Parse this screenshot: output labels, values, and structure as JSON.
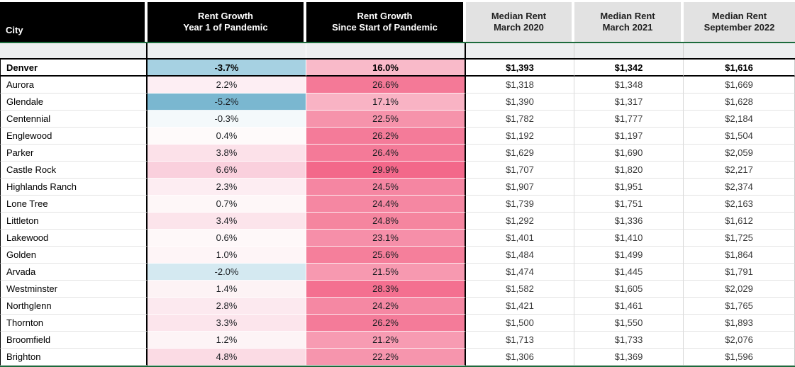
{
  "accent": {
    "header_black": "#000000",
    "header_gray": "#e2e2e2",
    "freeze_green": "#1c6b3c",
    "spacer_gray": "#edeff0",
    "negative_blue_max": "#7ab7d0",
    "positive_pink_max": "#f3688a"
  },
  "table": {
    "headers": {
      "city": "City",
      "yr1": "Rent Growth\nYear 1 of Pandemic",
      "since": "Rent Growth\nSince Start of Pandemic",
      "m2020": "Median Rent\nMarch 2020",
      "m2021": "Median Rent\nMarch 2021",
      "m2022": "Median Rent\nSeptember 2022"
    },
    "rows": [
      {
        "city": "Denver",
        "bold": true,
        "yr1": "-3.7%",
        "yr1_bg": "#a6d1e2",
        "since": "16.0%",
        "since_bg": "#f9bac9",
        "rent_mar2020": "$1,393",
        "rent_mar2021": "$1,342",
        "rent_sep2022": "$1,616"
      },
      {
        "city": "Aurora",
        "bold": false,
        "yr1": "2.2%",
        "yr1_bg": "#fdeef3",
        "since": "26.6%",
        "since_bg": "#f47997",
        "rent_mar2020": "$1,318",
        "rent_mar2021": "$1,348",
        "rent_sep2022": "$1,669"
      },
      {
        "city": "Glendale",
        "bold": false,
        "yr1": "-5.2%",
        "yr1_bg": "#7ab7d0",
        "since": "17.1%",
        "since_bg": "#f9b3c4",
        "rent_mar2020": "$1,390",
        "rent_mar2021": "$1,317",
        "rent_sep2022": "$1,628"
      },
      {
        "city": "Centennial",
        "bold": false,
        "yr1": "-0.3%",
        "yr1_bg": "#f4f9fb",
        "since": "22.5%",
        "since_bg": "#f693ab",
        "rent_mar2020": "$1,782",
        "rent_mar2021": "$1,777",
        "rent_sep2022": "$2,184"
      },
      {
        "city": "Englewood",
        "bold": false,
        "yr1": "0.4%",
        "yr1_bg": "#fefafa",
        "since": "26.2%",
        "since_bg": "#f47b99",
        "rent_mar2020": "$1,192",
        "rent_mar2021": "$1,197",
        "rent_sep2022": "$1,504"
      },
      {
        "city": "Parker",
        "bold": false,
        "yr1": "3.8%",
        "yr1_bg": "#fce1e9",
        "since": "26.4%",
        "since_bg": "#f47a98",
        "rent_mar2020": "$1,629",
        "rent_mar2021": "$1,690",
        "rent_sep2022": "$2,059"
      },
      {
        "city": "Castle Rock",
        "bold": false,
        "yr1": "6.6%",
        "yr1_bg": "#fad0dd",
        "since": "29.9%",
        "since_bg": "#f3688a",
        "rent_mar2020": "$1,707",
        "rent_mar2021": "$1,820",
        "rent_sep2022": "$2,217"
      },
      {
        "city": "Highlands Ranch",
        "bold": false,
        "yr1": "2.3%",
        "yr1_bg": "#fdedf2",
        "since": "24.5%",
        "since_bg": "#f586a2",
        "rent_mar2020": "$1,907",
        "rent_mar2021": "$1,951",
        "rent_sep2022": "$2,374"
      },
      {
        "city": "Lone Tree",
        "bold": false,
        "yr1": "0.7%",
        "yr1_bg": "#fef7f8",
        "since": "24.4%",
        "since_bg": "#f587a2",
        "rent_mar2020": "$1,739",
        "rent_mar2021": "$1,751",
        "rent_sep2022": "$2,163"
      },
      {
        "city": "Littleton",
        "bold": false,
        "yr1": "3.4%",
        "yr1_bg": "#fce4eb",
        "since": "24.8%",
        "since_bg": "#f5859f",
        "rent_mar2020": "$1,292",
        "rent_mar2021": "$1,336",
        "rent_sep2022": "$1,612"
      },
      {
        "city": "Lakewood",
        "bold": false,
        "yr1": "0.6%",
        "yr1_bg": "#fef8f9",
        "since": "23.1%",
        "since_bg": "#f68fa9",
        "rent_mar2020": "$1,401",
        "rent_mar2021": "$1,410",
        "rent_sep2022": "$1,725"
      },
      {
        "city": "Golden",
        "bold": false,
        "yr1": "1.0%",
        "yr1_bg": "#fef5f7",
        "since": "25.6%",
        "since_bg": "#f57f9b",
        "rent_mar2020": "$1,484",
        "rent_mar2021": "$1,499",
        "rent_sep2022": "$1,864"
      },
      {
        "city": "Arvada",
        "bold": false,
        "yr1": "-2.0%",
        "yr1_bg": "#d4e9f1",
        "since": "21.5%",
        "since_bg": "#f799b0",
        "rent_mar2020": "$1,474",
        "rent_mar2021": "$1,445",
        "rent_sep2022": "$1,791"
      },
      {
        "city": "Westminster",
        "bold": false,
        "yr1": "1.4%",
        "yr1_bg": "#fdf3f5",
        "since": "28.3%",
        "since_bg": "#f47090",
        "rent_mar2020": "$1,582",
        "rent_mar2021": "$1,605",
        "rent_sep2022": "$2,029"
      },
      {
        "city": "Northglenn",
        "bold": false,
        "yr1": "2.8%",
        "yr1_bg": "#fce9ef",
        "since": "24.2%",
        "since_bg": "#f588a3",
        "rent_mar2020": "$1,421",
        "rent_mar2021": "$1,461",
        "rent_sep2022": "$1,765"
      },
      {
        "city": "Thornton",
        "bold": false,
        "yr1": "3.3%",
        "yr1_bg": "#fce5ec",
        "since": "26.2%",
        "since_bg": "#f47b99",
        "rent_mar2020": "$1,500",
        "rent_mar2021": "$1,550",
        "rent_sep2022": "$1,893"
      },
      {
        "city": "Broomfield",
        "bold": false,
        "yr1": "1.2%",
        "yr1_bg": "#fdf4f6",
        "since": "21.2%",
        "since_bg": "#f79bb2",
        "rent_mar2020": "$1,713",
        "rent_mar2021": "$1,733",
        "rent_sep2022": "$2,076"
      },
      {
        "city": "Brighton",
        "bold": false,
        "yr1": "4.8%",
        "yr1_bg": "#fbdbe4",
        "since": "22.2%",
        "since_bg": "#f695ad",
        "rent_mar2020": "$1,306",
        "rent_mar2021": "$1,369",
        "rent_sep2022": "$1,596"
      }
    ]
  },
  "chart_data": {
    "type": "table",
    "title": "Denver metro rent growth and median rents",
    "columns": [
      "City",
      "Rent Growth Year 1 of Pandemic (%)",
      "Rent Growth Since Start of Pandemic (%)",
      "Median Rent March 2020 ($)",
      "Median Rent March 2021 ($)",
      "Median Rent September 2022 ($)"
    ],
    "rows": [
      [
        "Denver",
        -3.7,
        16.0,
        1393,
        1342,
        1616
      ],
      [
        "Aurora",
        2.2,
        26.6,
        1318,
        1348,
        1669
      ],
      [
        "Glendale",
        -5.2,
        17.1,
        1390,
        1317,
        1628
      ],
      [
        "Centennial",
        -0.3,
        22.5,
        1782,
        1777,
        2184
      ],
      [
        "Englewood",
        0.4,
        26.2,
        1192,
        1197,
        1504
      ],
      [
        "Parker",
        3.8,
        26.4,
        1629,
        1690,
        2059
      ],
      [
        "Castle Rock",
        6.6,
        29.9,
        1707,
        1820,
        2217
      ],
      [
        "Highlands Ranch",
        2.3,
        24.5,
        1907,
        1951,
        2374
      ],
      [
        "Lone Tree",
        0.7,
        24.4,
        1739,
        1751,
        2163
      ],
      [
        "Littleton",
        3.4,
        24.8,
        1292,
        1336,
        1612
      ],
      [
        "Lakewood",
        0.6,
        23.1,
        1401,
        1410,
        1725
      ],
      [
        "Golden",
        1.0,
        25.6,
        1484,
        1499,
        1864
      ],
      [
        "Arvada",
        -2.0,
        21.5,
        1474,
        1445,
        1791
      ],
      [
        "Westminster",
        1.4,
        28.3,
        1582,
        1605,
        2029
      ],
      [
        "Northglenn",
        2.8,
        24.2,
        1421,
        1461,
        1765
      ],
      [
        "Thornton",
        3.3,
        26.2,
        1500,
        1550,
        1893
      ],
      [
        "Broomfield",
        1.2,
        21.2,
        1713,
        1733,
        2076
      ],
      [
        "Brighton",
        4.8,
        22.2,
        1306,
        1369,
        1596
      ]
    ],
    "notes": "Conditional formatting: negative year-1 growth shaded blue (darker = more negative); positive growth shaded pink (darker = larger). Denver row is bold with a thick black bottom border."
  }
}
